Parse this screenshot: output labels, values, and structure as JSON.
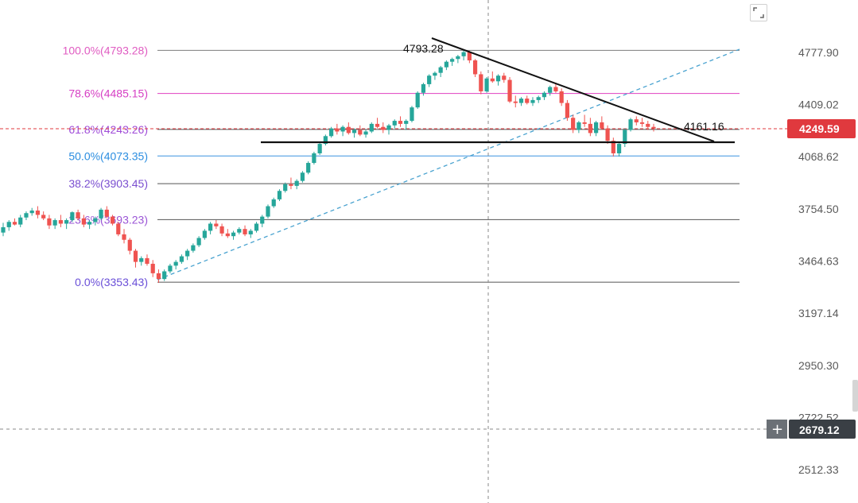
{
  "chart_data": {
    "type": "candlestick",
    "price_axis": {
      "ticks": [
        "4777.90",
        "4409.02",
        "4068.62",
        "3754.50",
        "3464.63",
        "3197.14",
        "2950.30",
        "2722.52",
        "2512.33"
      ],
      "scale": "log"
    },
    "fibonacci_levels": [
      {
        "label": "100.0%(4793.28)",
        "value": 4793.28,
        "color": "#e05cc2"
      },
      {
        "label": "78.6%(4485.15)",
        "value": 4485.15,
        "color": "#d63fc4"
      },
      {
        "label": "61.8%(4243.26)",
        "value": 4243.26,
        "color": "#a04cd8"
      },
      {
        "label": "50.0%(4073.35)",
        "value": 4073.35,
        "color": "#2b8de0"
      },
      {
        "label": "38.2%(3903.45)",
        "value": 3903.45,
        "color": "#7a4ed0"
      },
      {
        "label": "23.6%(3693.23)",
        "value": 3693.23,
        "color": "#9b55d6"
      },
      {
        "label": "0.0%(3353.43)",
        "value": 3353.43,
        "color": "#6a4fd8"
      }
    ],
    "annotations": {
      "peak": "4793.28",
      "triangle_apex": "4161.16"
    },
    "current_price": "4249.59",
    "crosshair_price": "2679.12",
    "ohlc": [
      [
        3620,
        3675,
        3600,
        3650
      ],
      [
        3650,
        3690,
        3630,
        3680
      ],
      [
        3680,
        3700,
        3660,
        3665
      ],
      [
        3665,
        3720,
        3650,
        3705
      ],
      [
        3705,
        3740,
        3690,
        3730
      ],
      [
        3730,
        3760,
        3715,
        3745
      ],
      [
        3745,
        3770,
        3700,
        3720
      ],
      [
        3720,
        3740,
        3690,
        3700
      ],
      [
        3700,
        3720,
        3640,
        3660
      ],
      [
        3660,
        3700,
        3640,
        3690
      ],
      [
        3690,
        3720,
        3650,
        3670
      ],
      [
        3670,
        3700,
        3640,
        3690
      ],
      [
        3690,
        3740,
        3680,
        3735
      ],
      [
        3735,
        3750,
        3690,
        3700
      ],
      [
        3700,
        3720,
        3650,
        3665
      ],
      [
        3665,
        3690,
        3640,
        3680
      ],
      [
        3680,
        3710,
        3660,
        3700
      ],
      [
        3700,
        3760,
        3690,
        3750
      ],
      [
        3750,
        3770,
        3700,
        3710
      ],
      [
        3710,
        3720,
        3660,
        3670
      ],
      [
        3670,
        3680,
        3600,
        3610
      ],
      [
        3610,
        3640,
        3560,
        3580
      ],
      [
        3580,
        3590,
        3500,
        3520
      ],
      [
        3520,
        3530,
        3430,
        3460
      ],
      [
        3460,
        3490,
        3440,
        3480
      ],
      [
        3480,
        3500,
        3440,
        3450
      ],
      [
        3450,
        3470,
        3380,
        3400
      ],
      [
        3400,
        3420,
        3350,
        3370
      ],
      [
        3370,
        3420,
        3360,
        3410
      ],
      [
        3410,
        3450,
        3400,
        3440
      ],
      [
        3440,
        3470,
        3420,
        3460
      ],
      [
        3460,
        3500,
        3450,
        3490
      ],
      [
        3490,
        3530,
        3470,
        3520
      ],
      [
        3520,
        3560,
        3510,
        3550
      ],
      [
        3550,
        3600,
        3540,
        3590
      ],
      [
        3590,
        3640,
        3580,
        3630
      ],
      [
        3630,
        3680,
        3610,
        3670
      ],
      [
        3670,
        3690,
        3640,
        3655
      ],
      [
        3655,
        3670,
        3600,
        3615
      ],
      [
        3615,
        3640,
        3590,
        3600
      ],
      [
        3600,
        3630,
        3580,
        3620
      ],
      [
        3620,
        3650,
        3610,
        3640
      ],
      [
        3640,
        3660,
        3600,
        3610
      ],
      [
        3610,
        3640,
        3590,
        3630
      ],
      [
        3630,
        3680,
        3620,
        3670
      ],
      [
        3670,
        3720,
        3650,
        3710
      ],
      [
        3710,
        3780,
        3700,
        3770
      ],
      [
        3770,
        3820,
        3760,
        3810
      ],
      [
        3810,
        3870,
        3800,
        3860
      ],
      [
        3860,
        3910,
        3850,
        3900
      ],
      [
        3900,
        3940,
        3870,
        3890
      ],
      [
        3890,
        3930,
        3870,
        3920
      ],
      [
        3920,
        3980,
        3910,
        3970
      ],
      [
        3970,
        4040,
        3960,
        4030
      ],
      [
        4030,
        4100,
        4020,
        4090
      ],
      [
        4090,
        4160,
        4080,
        4150
      ],
      [
        4150,
        4210,
        4140,
        4200
      ],
      [
        4200,
        4260,
        4190,
        4250
      ],
      [
        4250,
        4280,
        4210,
        4230
      ],
      [
        4230,
        4270,
        4200,
        4260
      ],
      [
        4260,
        4290,
        4210,
        4220
      ],
      [
        4220,
        4250,
        4190,
        4240
      ],
      [
        4240,
        4270,
        4200,
        4210
      ],
      [
        4210,
        4240,
        4190,
        4230
      ],
      [
        4230,
        4290,
        4220,
        4280
      ],
      [
        4280,
        4320,
        4250,
        4260
      ],
      [
        4260,
        4290,
        4220,
        4240
      ],
      [
        4240,
        4280,
        4210,
        4270
      ],
      [
        4270,
        4310,
        4250,
        4300
      ],
      [
        4300,
        4330,
        4260,
        4280
      ],
      [
        4280,
        4310,
        4240,
        4300
      ],
      [
        4300,
        4400,
        4290,
        4390
      ],
      [
        4390,
        4500,
        4380,
        4490
      ],
      [
        4490,
        4560,
        4470,
        4550
      ],
      [
        4550,
        4620,
        4530,
        4610
      ],
      [
        4610,
        4640,
        4580,
        4630
      ],
      [
        4630,
        4680,
        4600,
        4670
      ],
      [
        4670,
        4720,
        4650,
        4710
      ],
      [
        4710,
        4740,
        4680,
        4730
      ],
      [
        4730,
        4760,
        4700,
        4750
      ],
      [
        4750,
        4793,
        4720,
        4780
      ],
      [
        4780,
        4790,
        4700,
        4720
      ],
      [
        4720,
        4730,
        4600,
        4620
      ],
      [
        4620,
        4640,
        4480,
        4500
      ],
      [
        4500,
        4600,
        4490,
        4590
      ],
      [
        4590,
        4640,
        4560,
        4570
      ],
      [
        4570,
        4620,
        4540,
        4610
      ],
      [
        4610,
        4630,
        4560,
        4580
      ],
      [
        4580,
        4600,
        4420,
        4430
      ],
      [
        4430,
        4470,
        4390,
        4420
      ],
      [
        4420,
        4460,
        4400,
        4450
      ],
      [
        4450,
        4470,
        4410,
        4420
      ],
      [
        4420,
        4460,
        4400,
        4440
      ],
      [
        4440,
        4470,
        4420,
        4460
      ],
      [
        4460,
        4500,
        4440,
        4490
      ],
      [
        4490,
        4540,
        4470,
        4530
      ],
      [
        4530,
        4560,
        4490,
        4500
      ],
      [
        4500,
        4520,
        4400,
        4420
      ],
      [
        4420,
        4440,
        4300,
        4320
      ],
      [
        4320,
        4340,
        4220,
        4240
      ],
      [
        4240,
        4300,
        4220,
        4290
      ],
      [
        4290,
        4340,
        4260,
        4280
      ],
      [
        4280,
        4320,
        4200,
        4220
      ],
      [
        4220,
        4300,
        4200,
        4290
      ],
      [
        4290,
        4330,
        4240,
        4250
      ],
      [
        4250,
        4270,
        4150,
        4170
      ],
      [
        4170,
        4190,
        4070,
        4090
      ],
      [
        4090,
        4160,
        4070,
        4150
      ],
      [
        4150,
        4250,
        4130,
        4240
      ],
      [
        4240,
        4320,
        4230,
        4310
      ],
      [
        4310,
        4330,
        4270,
        4290
      ],
      [
        4290,
        4320,
        4260,
        4280
      ],
      [
        4280,
        4300,
        4240,
        4260
      ],
      [
        4260,
        4280,
        4230,
        4250
      ]
    ]
  }
}
